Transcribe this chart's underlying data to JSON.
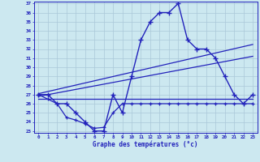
{
  "xlabel": "Graphe des températures (°c)",
  "line_color": "#2222bb",
  "bg_color": "#cce8f0",
  "grid_color": "#aac8d8",
  "ylim": [
    23,
    37
  ],
  "xlim": [
    -0.5,
    23.5
  ],
  "yticks": [
    23,
    24,
    25,
    26,
    27,
    28,
    29,
    30,
    31,
    32,
    33,
    34,
    35,
    36,
    37
  ],
  "xticks": [
    0,
    1,
    2,
    3,
    4,
    5,
    6,
    7,
    8,
    9,
    10,
    11,
    12,
    13,
    14,
    15,
    16,
    17,
    18,
    19,
    20,
    21,
    22,
    23
  ],
  "main_curve_x": [
    0,
    1,
    2,
    3,
    4,
    5,
    6,
    7,
    8,
    9,
    10,
    11,
    12,
    13,
    14,
    15,
    16,
    17,
    18,
    19,
    20,
    21,
    22,
    23
  ],
  "main_curve_y": [
    27,
    27,
    26,
    26,
    25,
    24,
    23,
    23,
    27,
    25,
    29,
    33,
    35,
    36,
    36,
    37,
    33,
    32,
    32,
    31,
    29,
    27,
    26,
    27
  ],
  "bottom_curve_x": [
    0,
    1,
    2,
    3,
    4,
    5,
    6,
    7,
    8,
    9,
    10,
    11,
    12,
    13,
    14,
    15,
    16,
    17,
    18,
    19,
    20,
    21,
    22,
    23
  ],
  "bottom_curve_y": [
    27,
    26.5,
    26,
    24.5,
    24.2,
    23.8,
    23.3,
    23.4,
    25,
    26,
    26,
    26,
    26,
    26,
    26,
    26,
    26,
    26,
    26,
    26,
    26,
    26,
    26,
    26
  ],
  "flat_lines": [
    {
      "x0": 0,
      "y0": 27.1,
      "x1": 23,
      "y1": 32.5
    },
    {
      "x0": 0,
      "y0": 26.8,
      "x1": 23,
      "y1": 31.2
    },
    {
      "x0": 0,
      "y0": 26.5,
      "x1": 23,
      "y1": 26.5
    }
  ]
}
